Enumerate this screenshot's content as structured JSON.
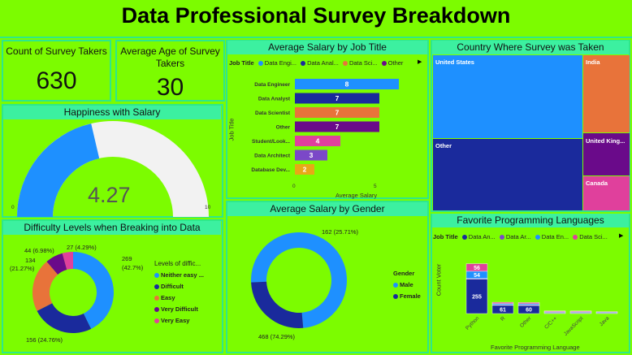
{
  "title": "Data Professional Survey Breakdown",
  "colors": {
    "bg": "#7cfc00",
    "accent": "#3cf0a0",
    "blue": "#1e90ff",
    "navy": "#1a2a9c",
    "orange": "#e8733a",
    "purple": "#6a0a8a",
    "pink": "#e0409c",
    "violet": "#7b48c8",
    "gold": "#e8a817"
  },
  "cards": {
    "count_title": "Count of Survey Takers",
    "count_value": "630",
    "age_title": "Average Age of Survey Takers",
    "age_value": "30"
  },
  "happiness": {
    "title": "Happiness with Salary",
    "value": "4.27",
    "min": "0",
    "max": "10",
    "fraction": 0.427
  },
  "salary_job": {
    "title": "Average Salary by Job Title",
    "legend_title": "Job Title",
    "legend": [
      "Data Engi...",
      "Data Anal...",
      "Data Sci...",
      "Other"
    ],
    "ylabel": "Job Title",
    "xlabel": "Average Salary",
    "ticks": [
      "0",
      "5"
    ]
  },
  "country": {
    "title": "Country Where Survey was Taken",
    "labels": [
      "United States",
      "Other",
      "India",
      "United King...",
      "Canada"
    ]
  },
  "difficulty": {
    "title": "Difficulty Levels when Breaking into Data",
    "legend_title": "Levels of diffic...",
    "legend": [
      "Neither easy ...",
      "Difficult",
      "Easy",
      "Very Difficult",
      "Very Easy"
    ],
    "labels": [
      "27 (4.29%)",
      "44 (6.98%)",
      "134",
      "(21.27%)",
      "269",
      "(42.7%)",
      "156 (24.76%)"
    ]
  },
  "gender": {
    "title": "Average Salary by Gender",
    "legend_title": "Gender",
    "legend": [
      "Male",
      "Female"
    ],
    "labels": [
      "162 (25.71%)",
      "468 (74.29%)"
    ]
  },
  "languages": {
    "title": "Favorite Programming Languages",
    "legend_title": "Job Title",
    "legend": [
      "Data An...",
      "Data Ar...",
      "Data En...",
      "Data Sci..."
    ],
    "ylabel": "Count Voter",
    "xlabel": "Favorite Programming Language"
  },
  "chart_data": [
    {
      "type": "bar",
      "title": "Average Salary by Job Title",
      "categories": [
        "Data Engineer",
        "Data Analyst",
        "Data Scientist",
        "Other",
        "Student/Look...",
        "Data Architect",
        "Database Dev..."
      ],
      "values": [
        8,
        7,
        7,
        7,
        4,
        3,
        2
      ],
      "colors": [
        "#1e90ff",
        "#1a2a9c",
        "#e8733a",
        "#6a0a8a",
        "#e0409c",
        "#7b48c8",
        "#e8a817"
      ],
      "xlabel": "Average Salary",
      "ylabel": "Job Title",
      "xlim": [
        0,
        10
      ]
    },
    {
      "type": "treemap",
      "title": "Country Where Survey was Taken",
      "categories": [
        "United States",
        "Other",
        "India",
        "United King...",
        "Canada"
      ]
    },
    {
      "type": "pie",
      "title": "Difficulty Levels when Breaking into Data",
      "categories": [
        "Neither easy ...",
        "Difficult",
        "Easy",
        "Very Difficult",
        "Very Easy"
      ],
      "values": [
        269,
        156,
        134,
        44,
        27
      ],
      "colors": [
        "#1e90ff",
        "#1a2a9c",
        "#e8733a",
        "#6a0a8a",
        "#e0409c"
      ]
    },
    {
      "type": "pie",
      "title": "Average Salary by Gender",
      "categories": [
        "Male",
        "Female"
      ],
      "values": [
        468,
        162
      ],
      "colors": [
        "#1e90ff",
        "#1a2a9c"
      ]
    },
    {
      "type": "bar",
      "title": "Favorite Programming Languages",
      "categories": [
        "Python",
        "R",
        "Other",
        "C/C++",
        "JavaScript",
        "Java"
      ],
      "series": [
        {
          "name": "Data An...",
          "values": [
            255,
            61,
            60,
            5,
            2,
            1
          ],
          "color": "#1a2a9c"
        },
        {
          "name": "Data Ar...",
          "values": [
            4,
            2,
            3,
            1,
            1,
            0
          ],
          "color": "#7b48c8"
        },
        {
          "name": "Data En...",
          "values": [
            54,
            8,
            8,
            1,
            1,
            1
          ],
          "color": "#1e90ff"
        },
        {
          "name": "Data Sci...",
          "values": [
            56,
            10,
            9,
            2,
            1,
            1
          ],
          "color": "#e0409c"
        }
      ],
      "xlabel": "Favorite Programming Language",
      "ylabel": "Count Voter"
    }
  ]
}
